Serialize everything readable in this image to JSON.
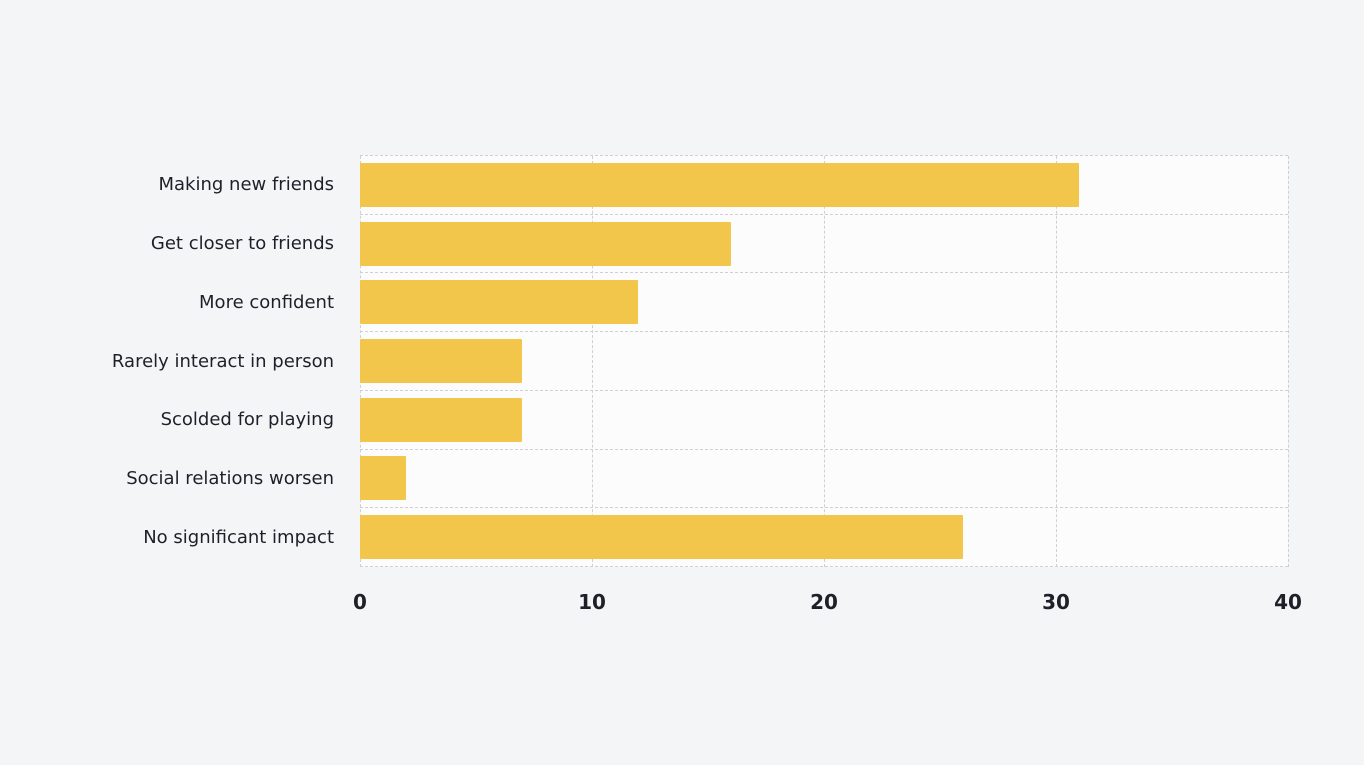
{
  "chart_data": {
    "type": "bar",
    "orientation": "horizontal",
    "title": "",
    "xlabel": "",
    "ylabel": "",
    "categories": [
      "Making new friends",
      "Get closer to friends",
      "More confident",
      "Rarely interact in person",
      "Scolded for playing",
      "Social relations worsen",
      "No significant impact"
    ],
    "values": [
      31,
      16,
      12,
      7,
      7,
      2,
      26
    ],
    "x_ticks": [
      0,
      10,
      20,
      30,
      40
    ],
    "xlim": [
      0,
      40
    ],
    "grid": "dashed",
    "legend": "none",
    "bar_color": "#f1c64b",
    "plot_background": "#fcfcfd",
    "page_background": "#f4f5f7",
    "gridline_color": "#cfcfd4",
    "text_color": "#1f1f29"
  }
}
